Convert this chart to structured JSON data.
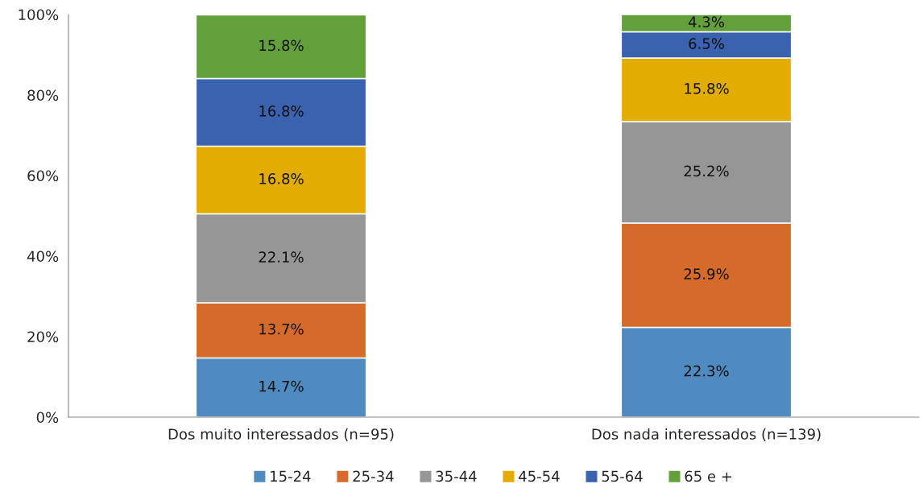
{
  "chart_data": {
    "type": "bar",
    "stacked": true,
    "categories": [
      "Dos muito interessados (n=95)",
      "Dos nada interessados (n=139)"
    ],
    "series": [
      {
        "name": "15-24",
        "color": "#4f8bc0",
        "values": [
          14.7,
          22.3
        ],
        "value_labels": [
          "14.7%",
          "22.3%"
        ]
      },
      {
        "name": "25-34",
        "color": "#d46b2a",
        "values": [
          13.7,
          25.9
        ],
        "value_labels": [
          "13.7%",
          "25.9%"
        ]
      },
      {
        "name": "35-44",
        "color": "#969696",
        "values": [
          22.1,
          25.2
        ],
        "value_labels": [
          "22.1%",
          "25.2%"
        ]
      },
      {
        "name": "45-54",
        "color": "#e3ac00",
        "values": [
          16.8,
          15.8
        ],
        "value_labels": [
          "16.8%",
          "15.8%"
        ]
      },
      {
        "name": "55-64",
        "color": "#3a62ae",
        "values": [
          16.8,
          6.5
        ],
        "value_labels": [
          "16.8%",
          "6.5%"
        ]
      },
      {
        "name": "65 e +",
        "color": "#63a03c",
        "values": [
          15.8,
          4.3
        ],
        "value_labels": [
          "15.8%",
          "4.3%"
        ]
      }
    ],
    "ylim": [
      0,
      100
    ],
    "yticks": [
      {
        "value": 0,
        "label": "0%"
      },
      {
        "value": 20,
        "label": "20%"
      },
      {
        "value": 40,
        "label": "40%"
      },
      {
        "value": 60,
        "label": "60%"
      },
      {
        "value": 80,
        "label": "80%"
      },
      {
        "value": 100,
        "label": "100%"
      }
    ],
    "grid": false,
    "legend": "bottom"
  }
}
